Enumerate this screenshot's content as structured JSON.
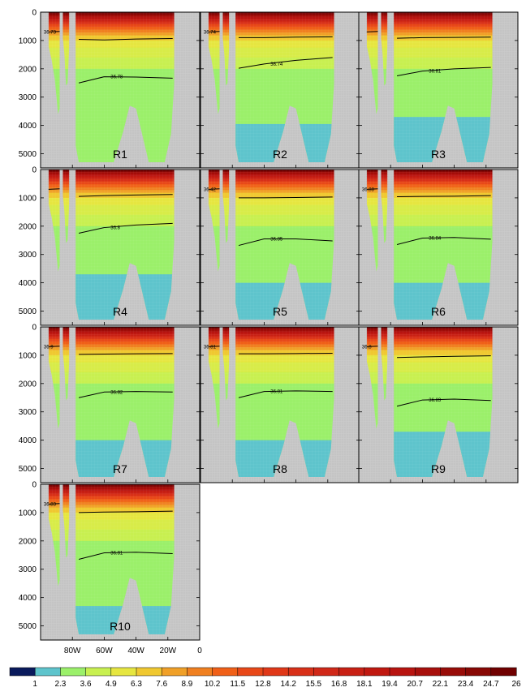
{
  "chart_data": {
    "type": "heatmap",
    "depth_ticks": [
      0,
      1000,
      2000,
      3000,
      4000,
      5000
    ],
    "depth_range": [
      0,
      5500
    ],
    "lon_range": [
      -100,
      0
    ],
    "x_tick_labels": [
      "80W",
      "60W",
      "40W",
      "20W",
      "0"
    ],
    "x_tick_values": [
      -80,
      -60,
      -40,
      -20,
      0
    ],
    "colorbar": {
      "labels": [
        "1",
        "2.3",
        "3.6",
        "4.9",
        "6.3",
        "7.6",
        "8.9",
        "10.2",
        "11.5",
        "12.8",
        "14.2",
        "15.5",
        "16.8",
        "18.1",
        "19.4",
        "20.7",
        "22.1",
        "23.4",
        "24.7",
        "26"
      ],
      "colors": [
        "#0a1a5c",
        "#5ec4cc",
        "#9bf06a",
        "#c8f050",
        "#e6e640",
        "#f0c830",
        "#f0a028",
        "#f08020",
        "#f06018",
        "#e84818",
        "#e03818",
        "#d83018",
        "#d02818",
        "#c82014",
        "#c01810",
        "#b81410",
        "#a8100c",
        "#980c08",
        "#880804",
        "#700000"
      ]
    },
    "panels": [
      {
        "label": "R1",
        "upper_contour_label": "36.73",
        "deep_contour_label": "36.78",
        "deep_contour_depth": [
          2500,
          2280,
          2290,
          2330
        ],
        "upper_contour_depth": [
          960,
          980,
          950,
          930
        ],
        "bottom_zone_depth": null
      },
      {
        "label": "R2",
        "upper_contour_label": "36.74",
        "deep_contour_label": "36.74",
        "deep_contour_depth": [
          1980,
          1830,
          1700,
          1600
        ],
        "upper_contour_depth": [
          900,
          900,
          880,
          870
        ],
        "bottom_zone_depth": 3950
      },
      {
        "label": "R3",
        "upper_contour_label": "",
        "deep_contour_label": "36.81",
        "deep_contour_depth": [
          2250,
          2080,
          2000,
          1950
        ],
        "upper_contour_depth": [
          920,
          900,
          890,
          880
        ],
        "bottom_zone_depth": 3700
      },
      {
        "label": "R4",
        "upper_contour_label": "",
        "deep_contour_label": "36.8",
        "deep_contour_depth": [
          2250,
          2050,
          1960,
          1900
        ],
        "upper_contour_depth": [
          950,
          920,
          900,
          880
        ],
        "bottom_zone_depth": 3700
      },
      {
        "label": "R5",
        "upper_contour_label": "36.42",
        "deep_contour_label": "36.85",
        "deep_contour_depth": [
          2680,
          2450,
          2450,
          2520
        ],
        "upper_contour_depth": [
          1000,
          1000,
          990,
          970
        ],
        "bottom_zone_depth": 4000
      },
      {
        "label": "R6",
        "upper_contour_label": "36.88",
        "deep_contour_label": "36.84",
        "deep_contour_depth": [
          2650,
          2420,
          2400,
          2460
        ],
        "upper_contour_depth": [
          960,
          950,
          940,
          920
        ],
        "bottom_zone_depth": 4000
      },
      {
        "label": "R7",
        "upper_contour_label": "36.9",
        "deep_contour_label": "36.82",
        "deep_contour_depth": [
          2500,
          2300,
          2280,
          2300
        ],
        "upper_contour_depth": [
          970,
          960,
          950,
          940
        ],
        "bottom_zone_depth": 4000
      },
      {
        "label": "R8",
        "upper_contour_label": "36.81",
        "deep_contour_label": "36.81",
        "deep_contour_depth": [
          2500,
          2280,
          2260,
          2280
        ],
        "upper_contour_depth": [
          950,
          950,
          940,
          930
        ],
        "bottom_zone_depth": 4000
      },
      {
        "label": "R9",
        "upper_contour_label": "36.8",
        "deep_contour_label": "36.83",
        "deep_contour_depth": [
          2800,
          2580,
          2550,
          2600
        ],
        "upper_contour_depth": [
          1080,
          1060,
          1040,
          1020
        ],
        "bottom_zone_depth": 3700
      },
      {
        "label": "R10",
        "upper_contour_label": "36.83",
        "deep_contour_label": "36.81",
        "deep_contour_depth": [
          2650,
          2420,
          2400,
          2450
        ],
        "upper_contour_depth": [
          1000,
          980,
          970,
          950
        ],
        "bottom_zone_depth": 4300
      }
    ]
  }
}
